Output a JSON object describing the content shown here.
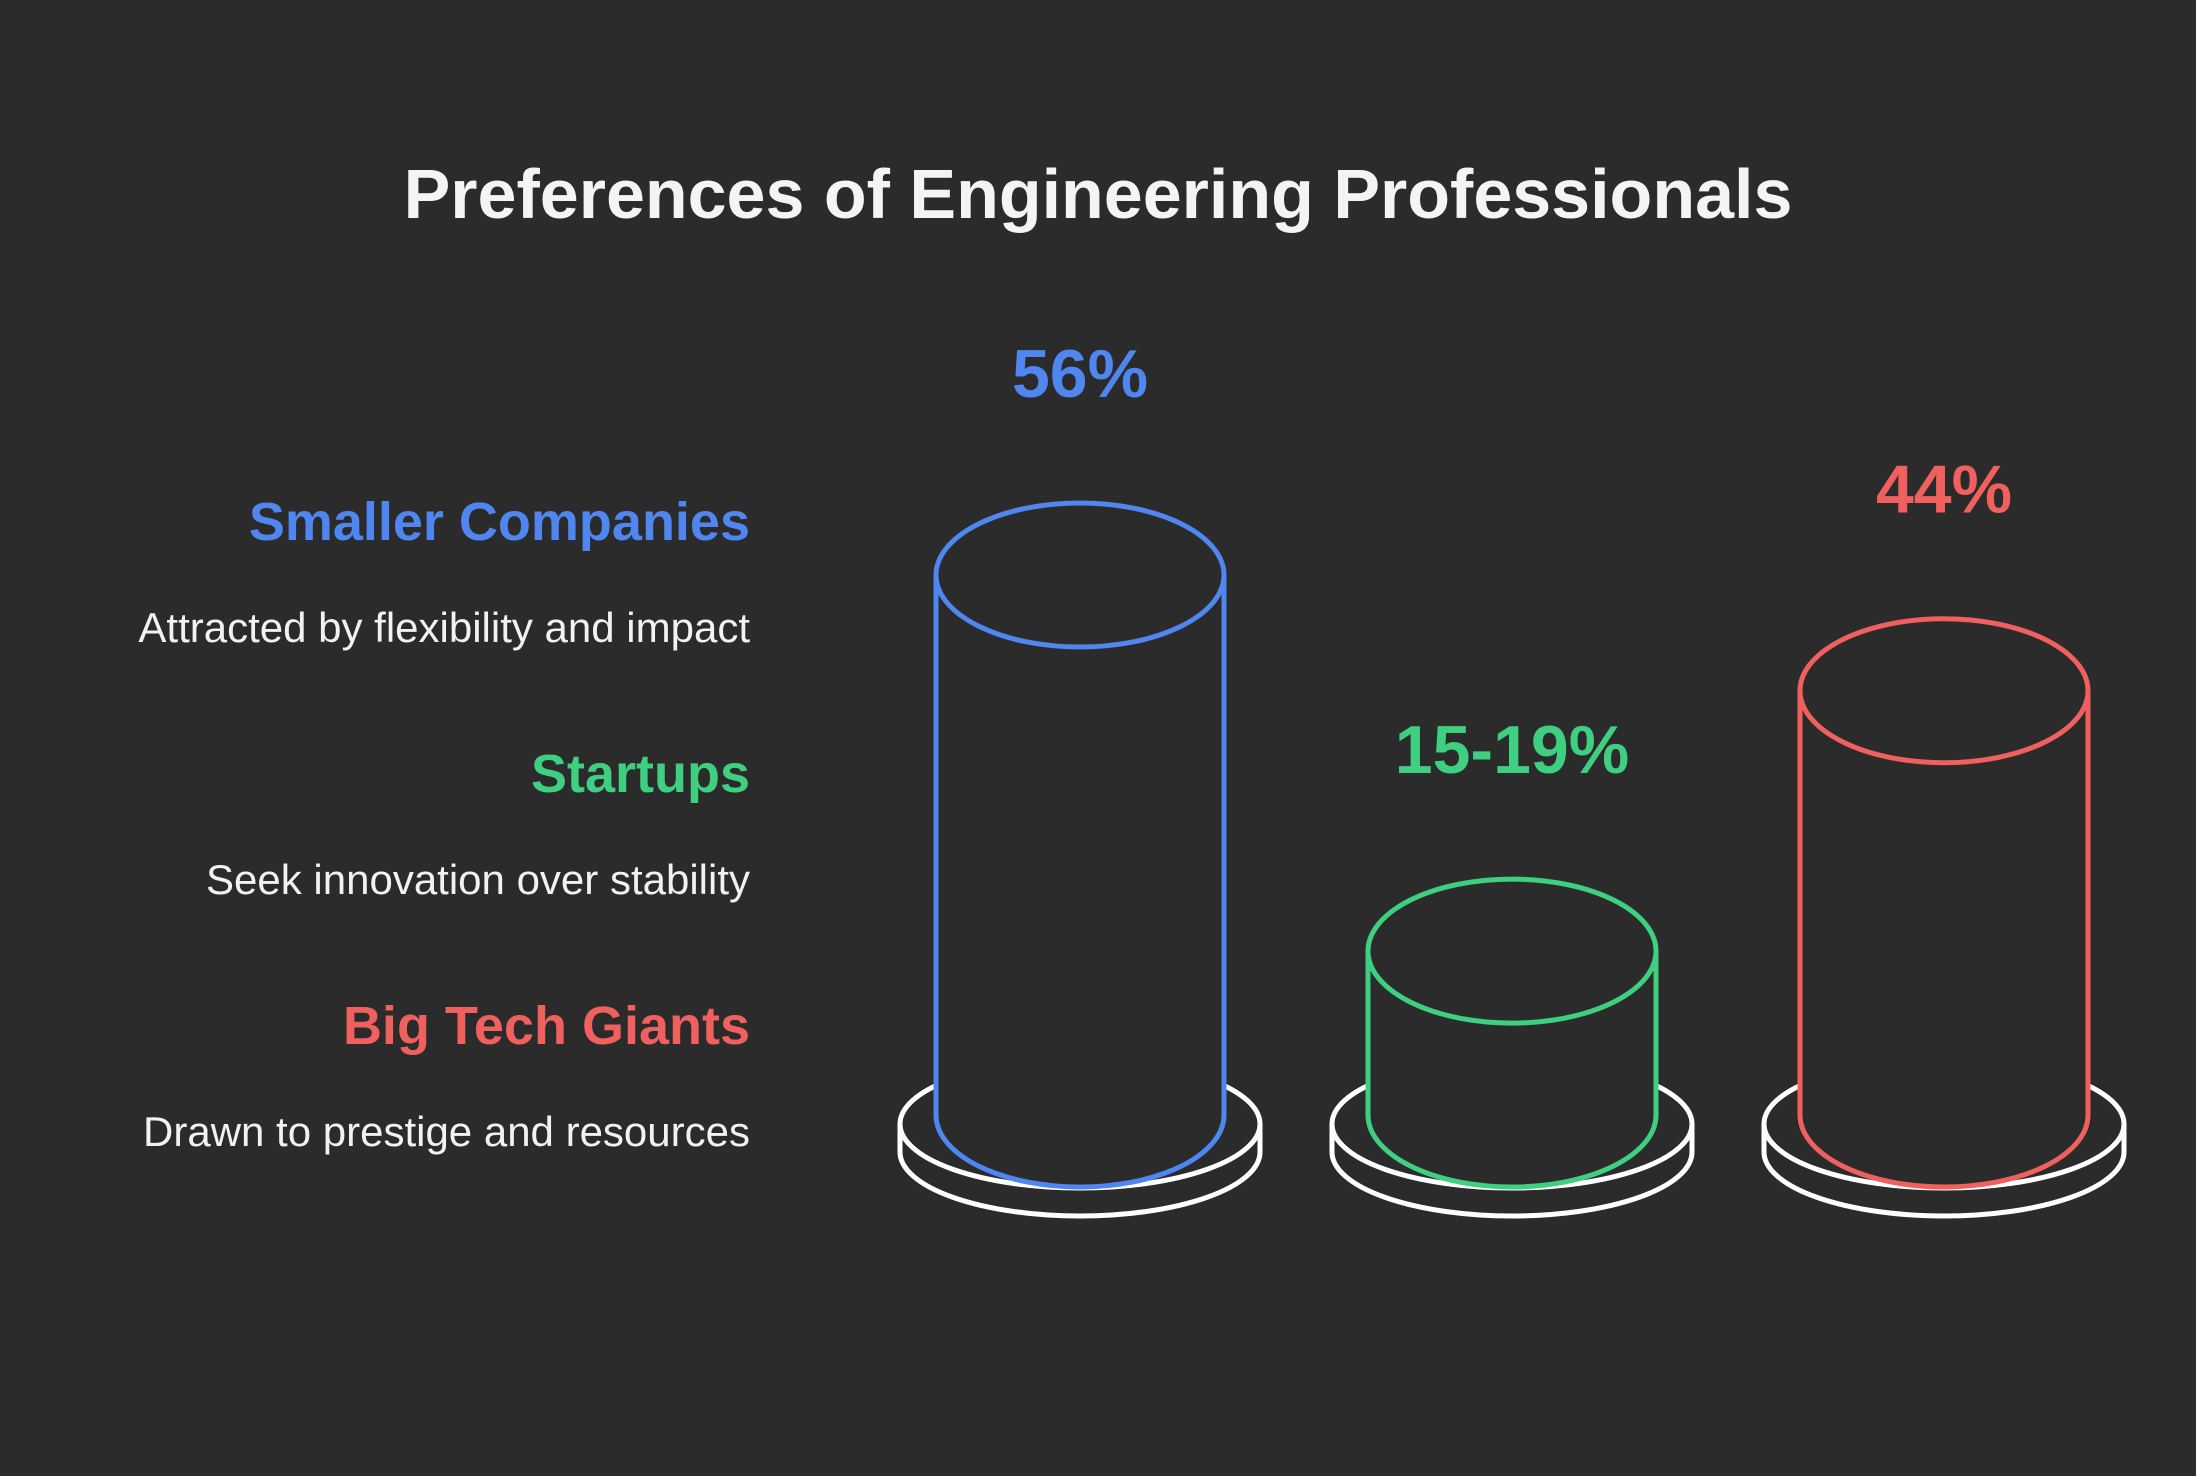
{
  "chart_data": {
    "type": "bar",
    "title": "Preferences of Engineering Professionals",
    "categories": [
      "Smaller Companies",
      "Startups",
      "Big Tech Giants"
    ],
    "values": [
      56,
      17,
      44
    ],
    "value_labels": [
      "56%",
      "15-19%",
      "44%"
    ],
    "descriptions": [
      "Attracted by flexibility and impact",
      "Seek innovation over stability",
      "Drawn to prestige and resources"
    ],
    "colors": [
      "#4f86f0",
      "#3fcf80",
      "#f0605e"
    ],
    "base_color": "#ffffff",
    "background": "#2b2b2b",
    "ylim": [
      0,
      56
    ]
  }
}
